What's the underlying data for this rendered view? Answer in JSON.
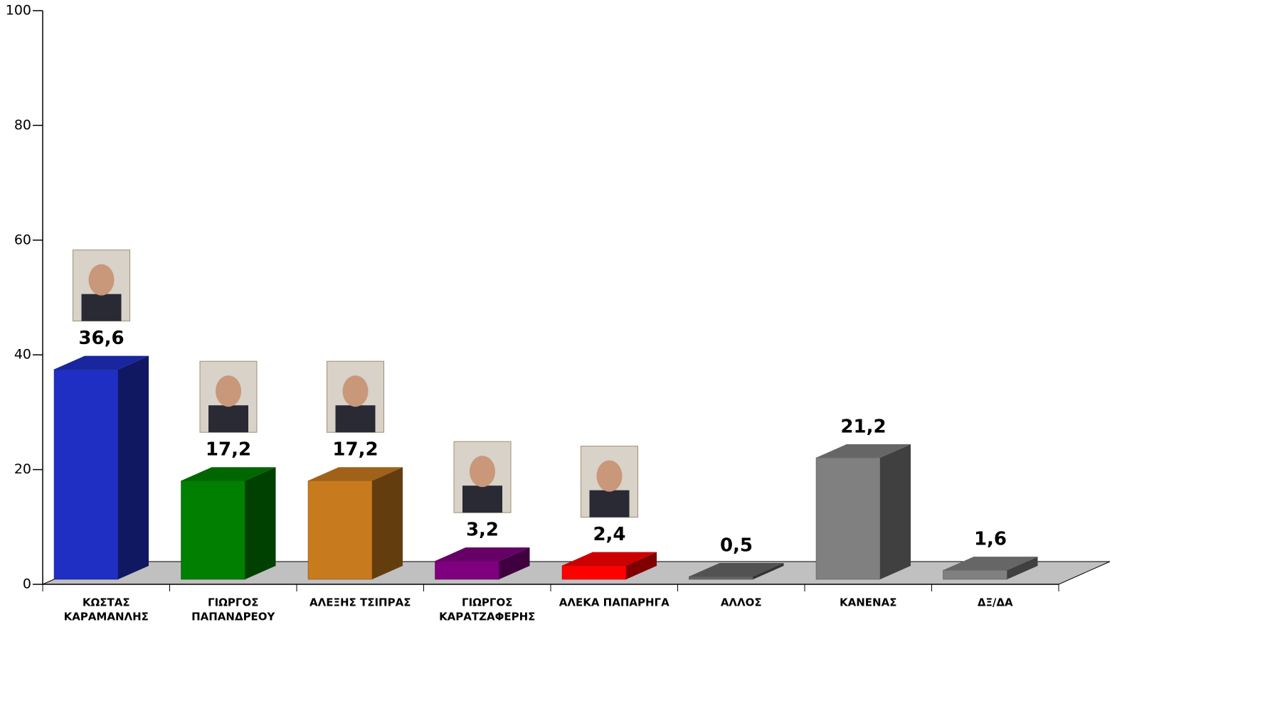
{
  "chart_data": {
    "type": "bar3d",
    "categories": [
      [
        "ΚΩΣΤΑΣ",
        "ΚΑΡΑΜΑΝΛΗΣ"
      ],
      [
        "ΓΙΩΡΓΟΣ",
        "ΠΑΠΑΝΔΡΕΟΥ"
      ],
      [
        "ΑΛΕΞΗΣ ΤΣΙΠΡΑΣ"
      ],
      [
        "ΓΙΩΡΓΟΣ",
        "ΚΑΡΑΤΖΑΦΕΡΗΣ"
      ],
      [
        "ΑΛΕΚΑ ΠΑΠΑΡΗΓΑ"
      ],
      [
        "ΑΛΛΟΣ"
      ],
      [
        "ΚΑΝΕΝΑΣ"
      ],
      [
        "ΔΞ/ΔΑ"
      ]
    ],
    "values": [
      36.6,
      17.2,
      17.2,
      3.2,
      2.4,
      0.5,
      21.2,
      1.6
    ],
    "value_labels": [
      "36,6",
      "17,2",
      "17,2",
      "3,2",
      "2,4",
      "0,5",
      "21,2",
      "1,6"
    ],
    "colors": [
      "#1f2fc4",
      "#007f00",
      "#c87a1e",
      "#7f007f",
      "#ff0000",
      "#666666",
      "#808080",
      "#808080"
    ],
    "ylim": [
      0,
      100
    ],
    "yticks": [
      0,
      20,
      40,
      60,
      80,
      100
    ]
  }
}
